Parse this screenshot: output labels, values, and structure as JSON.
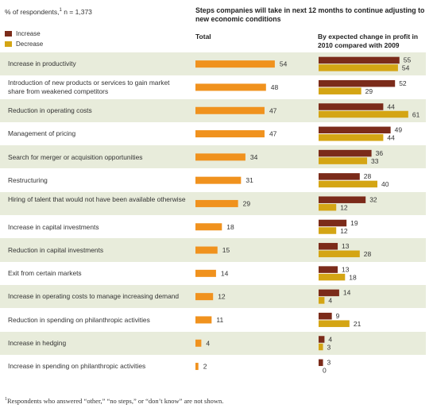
{
  "header": {
    "respondents_note": "% of respondents,",
    "respondents_sup": "1",
    "respondents_n": " n = 1,373",
    "title": "Steps companies will take in next 12 months to continue adjusting to new economic conditions",
    "total_heading": "Total",
    "profit_heading": "By expected change in profit in 2010 compared with 2009"
  },
  "legend": [
    {
      "label": "Increase",
      "color": "#7b2b1a"
    },
    {
      "label": "Decrease",
      "color": "#d4a514"
    }
  ],
  "colors": {
    "total_bar": "#f0921e",
    "increase": "#7b2b1a",
    "decrease": "#d4a514",
    "row_shade": "#e8ecdb"
  },
  "footnote": {
    "sup": "1",
    "text": "Respondents who answered “other,” “no steps,” or “don’t know” are not shown."
  },
  "chart_data": {
    "type": "bar",
    "categories": [
      "Increase in productivity",
      "Introduction of new products or services to gain market share from weakened competitors",
      "Reduction in operating costs",
      "Management of pricing",
      "Search for merger or acquisition opportunities",
      "Restructuring",
      "Hiring of talent that would not have been available otherwise",
      "Increase in capital investments",
      "Reduction in capital investments",
      "Exit from certain markets",
      "Increase in operating costs to manage increasing demand",
      "Reduction in spending on philanthropic activities",
      "Increase in hedging",
      "Increase in spending on philanthropic activities"
    ],
    "total": [
      54,
      48,
      47,
      47,
      34,
      31,
      29,
      18,
      15,
      14,
      12,
      11,
      4,
      2
    ],
    "series": [
      {
        "name": "Increase",
        "values": [
          55,
          52,
          44,
          49,
          36,
          28,
          32,
          19,
          13,
          13,
          14,
          9,
          4,
          3
        ]
      },
      {
        "name": "Decrease",
        "values": [
          54,
          29,
          61,
          44,
          33,
          40,
          12,
          12,
          28,
          18,
          4,
          21,
          3,
          0
        ]
      }
    ]
  }
}
